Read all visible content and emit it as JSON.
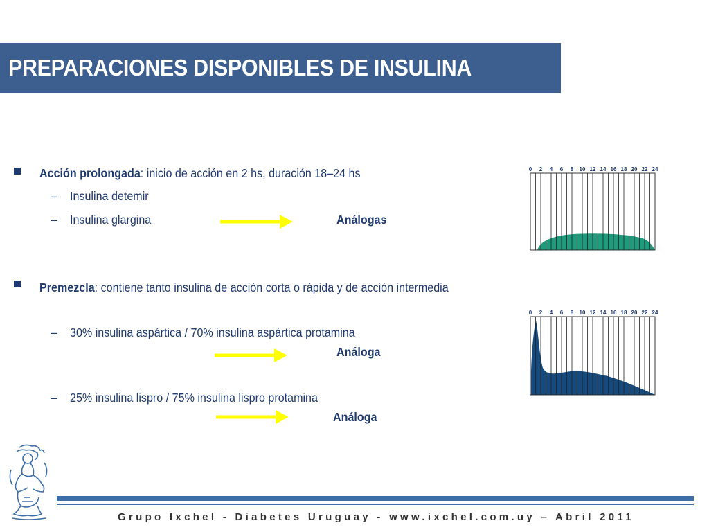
{
  "title": "PREPARACIONES DISPONIBLES DE INSULINA",
  "section1": {
    "label": "Acción prolongada",
    "text": ": inicio de acción en 2 hs, duración 18–24 hs",
    "items": [
      "Insulina detemir",
      "Insulina glargina"
    ],
    "tag": "Análogas"
  },
  "section2": {
    "label": "Premezcla",
    "text": ": contiene tanto insulina de acción corta o rápida y de acción intermedia",
    "item1": "30% insulina aspártica / 70% insulina aspártica protamina",
    "tag1": "Análoga",
    "item2": "25% insulina lispro / 75% insulina lispro protamina",
    "tag2": "Análoga"
  },
  "dash": "–",
  "hour_ticks": [
    "0",
    "2",
    "4",
    "6",
    "8",
    "10",
    "12",
    "14",
    "16",
    "18",
    "20",
    "22",
    "24"
  ],
  "colors": {
    "title_bg": "#3d5f8f",
    "text": "#1f3a6e",
    "arrow": "#ffff00",
    "prolonged_fill": "#1f9a7c",
    "premix_fill": "#174a7c",
    "footer_rule": "#3d6ea8"
  },
  "footer": "Grupo Ixchel  -  Diabetes Uruguay  -  www.ixchel.com.uy   –  Abril 2011"
}
